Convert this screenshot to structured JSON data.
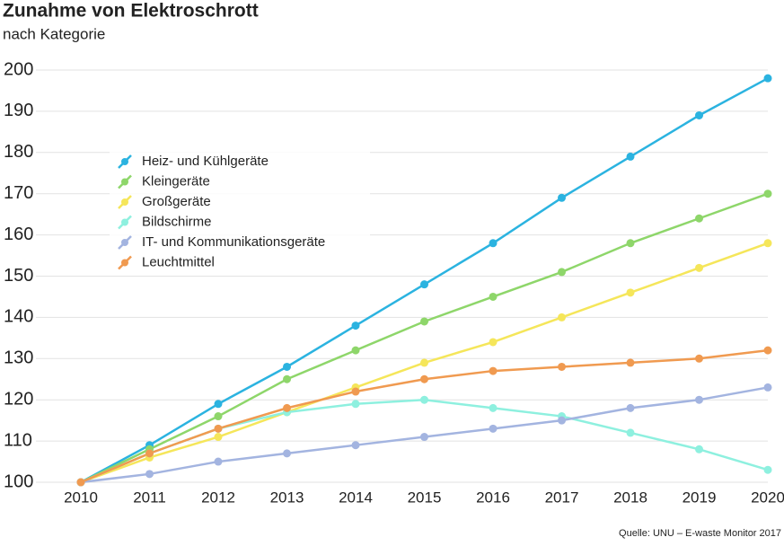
{
  "chart_data": {
    "type": "line",
    "title": "Zunahme von Elektroschrott",
    "subtitle": "nach Kategorie",
    "source": "Quelle: UNU – E-waste Monitor 2017",
    "x": [
      2010,
      2011,
      2012,
      2013,
      2014,
      2015,
      2016,
      2017,
      2018,
      2019,
      2020
    ],
    "xlim": [
      2010,
      2020
    ],
    "xticks": [
      2010,
      2011,
      2012,
      2013,
      2014,
      2015,
      2016,
      2017,
      2018,
      2019,
      2020
    ],
    "ylim": [
      100,
      200
    ],
    "yticks": [
      100,
      110,
      120,
      130,
      140,
      150,
      160,
      170,
      180,
      190,
      200
    ],
    "grid": true,
    "legend": "upper-left",
    "series": [
      {
        "name": "Heiz- und Kühlgeräte",
        "color": "#2bb3e0",
        "values": [
          100,
          109,
          119,
          128,
          138,
          148,
          158,
          169,
          179,
          189,
          198
        ]
      },
      {
        "name": "Kleingeräte",
        "color": "#8ed66a",
        "values": [
          100,
          108,
          116,
          125,
          132,
          139,
          145,
          151,
          158,
          164,
          170
        ]
      },
      {
        "name": "Großgeräte",
        "color": "#f5e65a",
        "values": [
          100,
          106,
          111,
          117,
          123,
          129,
          134,
          140,
          146,
          152,
          158
        ]
      },
      {
        "name": "Bildschirme",
        "color": "#8ef0df",
        "values": [
          100,
          107,
          113,
          117,
          119,
          120,
          118,
          116,
          112,
          108,
          103
        ]
      },
      {
        "name": "IT- und Kommunikationsgeräte",
        "color": "#a3b4e0",
        "values": [
          100,
          102,
          105,
          107,
          109,
          111,
          113,
          115,
          118,
          120,
          123
        ]
      },
      {
        "name": "Leuchtmittel",
        "color": "#f09a50",
        "values": [
          100,
          107,
          113,
          118,
          122,
          125,
          127,
          128,
          129,
          130,
          132
        ]
      }
    ]
  }
}
